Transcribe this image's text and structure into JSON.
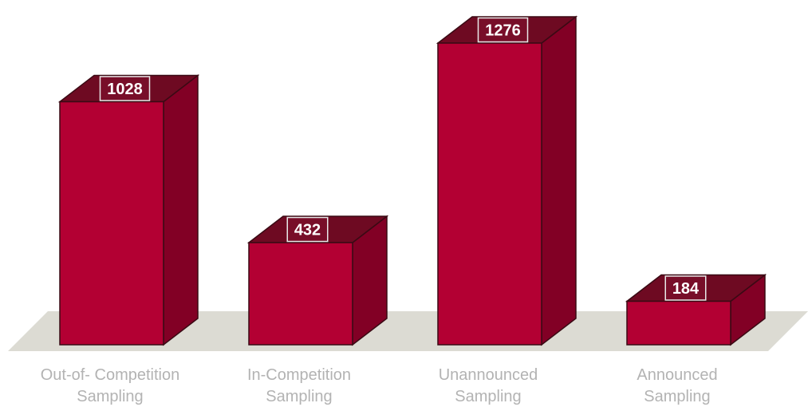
{
  "chart_data": {
    "type": "bar",
    "categories": [
      [
        "Out-of- Competition",
        "Sampling"
      ],
      [
        "In-Competition",
        "Sampling"
      ],
      [
        "Unannounced",
        "Sampling"
      ],
      [
        "Announced",
        "Sampling"
      ]
    ],
    "values": [
      1028,
      432,
      1276,
      184
    ],
    "data_labels": [
      "1028",
      "432",
      "1276",
      "184"
    ],
    "title": "",
    "xlabel": "",
    "ylabel": "",
    "ylim": [
      0,
      1276
    ],
    "grid": false,
    "style": "3d",
    "colors": {
      "front": "#b30033",
      "side": "#820025",
      "top": "#6e0a22",
      "floor": "#dcdbd3",
      "label_box": "#7a0f2a",
      "category_text": "#b3b3b3"
    }
  }
}
